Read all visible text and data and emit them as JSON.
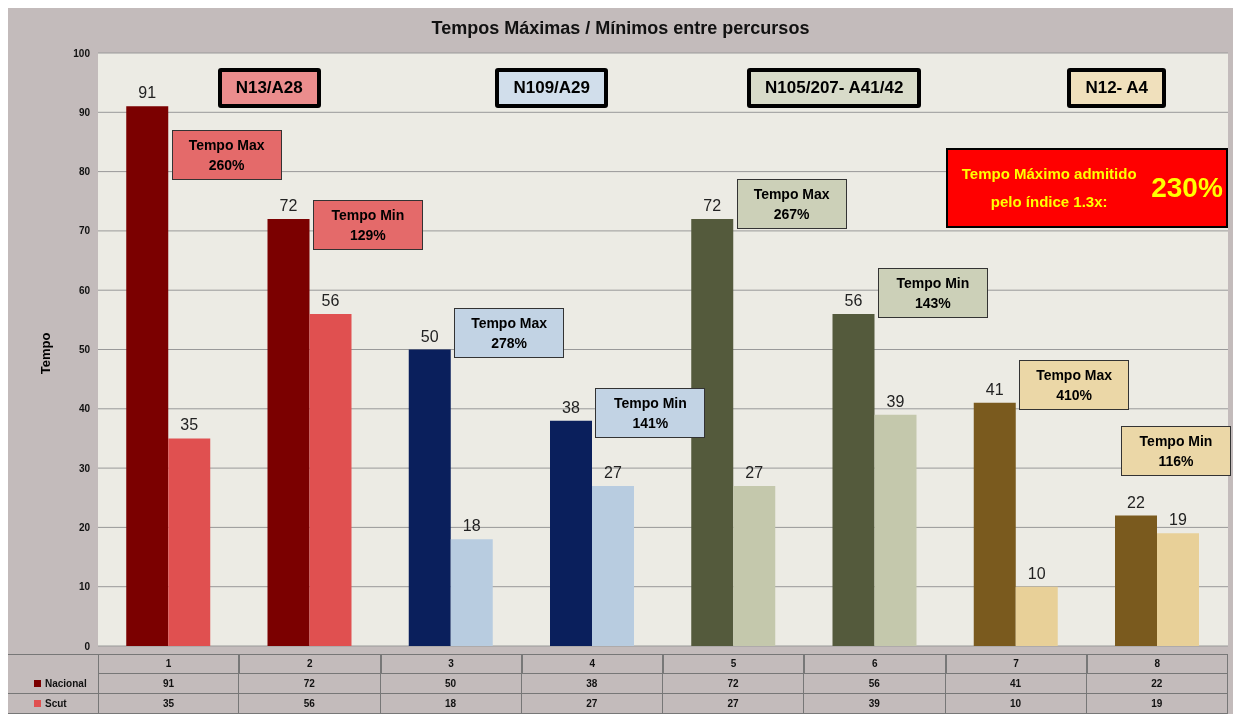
{
  "chart_data": {
    "type": "bar",
    "title": "Tempos Máximas / Mínimos entre percursos",
    "ylabel": "Tempo",
    "categories": [
      "1",
      "2",
      "3",
      "4",
      "5",
      "6",
      "7",
      "8"
    ],
    "series": [
      {
        "name": "Nacional",
        "colors": [
          "#7b0000",
          "#7b0000",
          "#0a1f5c",
          "#0a1f5c",
          "#545a3c",
          "#545a3c",
          "#7a5a1e",
          "#7a5a1e"
        ],
        "values": [
          91,
          72,
          50,
          38,
          72,
          56,
          41,
          22
        ],
        "value_labels": [
          "91",
          "72",
          "50",
          "38",
          "72",
          "56",
          "41",
          "22"
        ]
      },
      {
        "name": "Scut",
        "colors": [
          "#e05050",
          "#e05050",
          "#b8cce0",
          "#b8cce0",
          "#c4c8ac",
          "#c4c8ac",
          "#e8d098",
          "#e8d098"
        ],
        "values": [
          35,
          56,
          18,
          27,
          27,
          39,
          10,
          19
        ],
        "value_labels": [
          "35",
          "56",
          "18",
          "27",
          "27",
          "39",
          "10",
          "19"
        ]
      }
    ],
    "ylim": [
      0,
      100
    ],
    "yticks": [
      0,
      10,
      20,
      30,
      40,
      50,
      60,
      70,
      80,
      90,
      100
    ],
    "grid": "y",
    "legend": "bottom",
    "data_labels": true,
    "annotations": [
      "Tempo Max 260%",
      "Tempo Min 129%",
      "Tempo Max 278%",
      "Tempo Min 141%",
      "Tempo Max 267%",
      "Tempo Min 143%",
      "Tempo Max 410%",
      "Tempo Min 116%",
      "N13/A28",
      "N109/A29",
      "N105/207- A41/42",
      "N12- A4",
      "Tempo Máximo  admitido pelo índice 1.3x:",
      "230%"
    ]
  }
}
